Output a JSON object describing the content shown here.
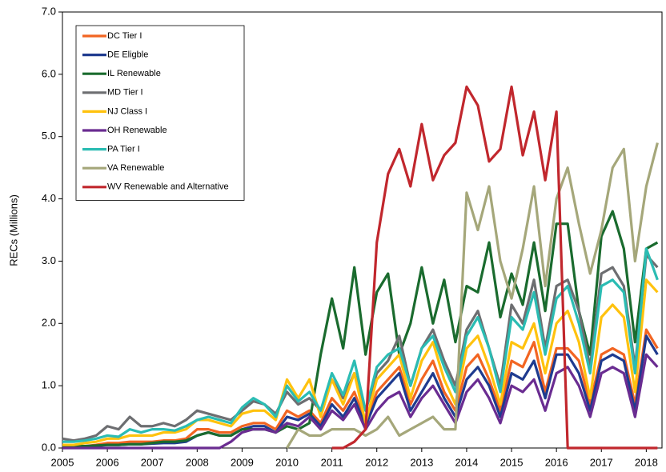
{
  "chart_data": {
    "type": "line",
    "y_label": "RECs (Millions)",
    "x": [
      2005,
      2005.25,
      2005.5,
      2005.75,
      2006,
      2006.25,
      2006.5,
      2006.75,
      2007,
      2007.25,
      2007.5,
      2007.75,
      2008,
      2008.25,
      2008.5,
      2008.75,
      2009,
      2009.25,
      2009.5,
      2009.75,
      2010,
      2010.25,
      2010.5,
      2010.75,
      2011,
      2011.25,
      2011.5,
      2011.75,
      2012,
      2012.25,
      2012.5,
      2012.75,
      2013,
      2013.25,
      2013.5,
      2013.75,
      2014,
      2014.25,
      2014.5,
      2014.75,
      2015,
      2015.25,
      2015.5,
      2015.75,
      2016,
      2016.25,
      2016.5,
      2016.75,
      2017,
      2017.25,
      2017.5,
      2017.75,
      2018,
      2018.25
    ],
    "xlim": [
      2005,
      2018.35
    ],
    "xticks": [
      2005,
      2006,
      2007,
      2008,
      2009,
      2010,
      2011,
      2012,
      2013,
      2014,
      2015,
      2016,
      2017,
      2018
    ],
    "ylim": [
      0,
      7
    ],
    "yticks": [
      {
        "value": 0,
        "label": "0.0"
      },
      {
        "value": 1,
        "label": "1.0"
      },
      {
        "value": 2,
        "label": "2.0"
      },
      {
        "value": 3,
        "label": "3.0"
      },
      {
        "value": 4,
        "label": "4.0"
      },
      {
        "value": 5,
        "label": "5.0"
      },
      {
        "value": 6,
        "label": "6.0"
      },
      {
        "value": 7,
        "label": "7.0"
      }
    ],
    "series": [
      {
        "name": "DC Tier I",
        "color": "#f26522",
        "values": [
          0.02,
          0.02,
          0.03,
          0.05,
          0.08,
          0.08,
          0.1,
          0.1,
          0.1,
          0.12,
          0.12,
          0.15,
          0.3,
          0.3,
          0.25,
          0.25,
          0.35,
          0.4,
          0.4,
          0.3,
          0.6,
          0.5,
          0.6,
          0.4,
          0.8,
          0.6,
          0.9,
          0.4,
          0.9,
          1.1,
          1.3,
          0.7,
          1.1,
          1.4,
          0.9,
          0.6,
          1.3,
          1.5,
          1.1,
          0.6,
          1.4,
          1.3,
          1.7,
          0.9,
          1.6,
          1.6,
          1.4,
          0.7,
          1.5,
          1.6,
          1.5,
          0.7,
          1.9,
          1.6
        ]
      },
      {
        "name": "DE Eligble",
        "color": "#1f3b8f",
        "values": [
          0.02,
          0.02,
          0.02,
          0.03,
          0.05,
          0.05,
          0.06,
          0.06,
          0.07,
          0.08,
          0.08,
          0.1,
          0.2,
          0.25,
          0.2,
          0.2,
          0.3,
          0.35,
          0.35,
          0.25,
          0.5,
          0.45,
          0.55,
          0.35,
          0.7,
          0.5,
          0.8,
          0.35,
          0.8,
          1.0,
          1.2,
          0.6,
          0.9,
          1.2,
          0.8,
          0.5,
          1.1,
          1.3,
          1.0,
          0.5,
          1.2,
          1.1,
          1.4,
          0.8,
          1.5,
          1.5,
          1.2,
          0.6,
          1.4,
          1.5,
          1.4,
          0.6,
          1.8,
          1.5
        ]
      },
      {
        "name": "IL Renewable",
        "color": "#1a6b2e",
        "values": [
          0.03,
          0.03,
          0.03,
          0.04,
          0.05,
          0.05,
          0.06,
          0.06,
          0.08,
          0.1,
          0.1,
          0.12,
          0.2,
          0.25,
          0.2,
          0.2,
          0.3,
          0.3,
          0.3,
          0.25,
          0.35,
          0.3,
          0.4,
          1.5,
          2.4,
          1.6,
          2.9,
          1.5,
          2.5,
          2.8,
          1.5,
          2.0,
          2.9,
          2.0,
          2.7,
          1.7,
          2.6,
          2.5,
          3.3,
          2.1,
          2.8,
          2.3,
          3.3,
          2.2,
          3.6,
          3.6,
          2.2,
          1.5,
          3.4,
          3.8,
          3.2,
          1.7,
          3.2,
          3.3
        ]
      },
      {
        "name": "MD Tier I",
        "color": "#6d6e71",
        "values": [
          0.15,
          0.12,
          0.15,
          0.2,
          0.35,
          0.3,
          0.5,
          0.35,
          0.35,
          0.4,
          0.35,
          0.45,
          0.6,
          0.55,
          0.5,
          0.45,
          0.6,
          0.75,
          0.7,
          0.55,
          0.9,
          0.7,
          0.8,
          0.6,
          1.1,
          0.8,
          1.2,
          0.6,
          1.2,
          1.4,
          1.8,
          1.0,
          1.6,
          1.9,
          1.4,
          1.0,
          1.9,
          2.2,
          1.6,
          1.0,
          2.3,
          2.0,
          2.7,
          1.6,
          2.6,
          2.7,
          2.2,
          1.3,
          2.8,
          2.9,
          2.6,
          1.3,
          3.1,
          2.9
        ]
      },
      {
        "name": "NJ Class I",
        "color": "#ffc20e",
        "values": [
          0.05,
          0.05,
          0.08,
          0.1,
          0.15,
          0.15,
          0.2,
          0.2,
          0.2,
          0.25,
          0.25,
          0.3,
          0.45,
          0.45,
          0.4,
          0.35,
          0.55,
          0.6,
          0.6,
          0.45,
          1.1,
          0.8,
          1.1,
          0.5,
          1.1,
          0.7,
          1.2,
          0.4,
          1.1,
          1.3,
          1.5,
          0.8,
          1.4,
          1.7,
          1.1,
          0.7,
          1.6,
          1.8,
          1.3,
          0.7,
          1.7,
          1.6,
          2.0,
          1.2,
          2.0,
          2.2,
          1.7,
          0.8,
          2.1,
          2.3,
          2.1,
          0.9,
          2.7,
          2.5
        ]
      },
      {
        "name": "OH Renewable",
        "color": "#6a2c91",
        "values": [
          0,
          0,
          0,
          0,
          0,
          0,
          0,
          0,
          0,
          0,
          0,
          0,
          0,
          0,
          0,
          0.1,
          0.25,
          0.3,
          0.3,
          0.25,
          0.4,
          0.35,
          0.5,
          0.3,
          0.6,
          0.45,
          0.7,
          0.3,
          0.6,
          0.8,
          0.9,
          0.5,
          0.8,
          1.0,
          0.7,
          0.4,
          0.9,
          1.1,
          0.8,
          0.4,
          1.0,
          0.9,
          1.1,
          0.6,
          1.2,
          1.3,
          1.0,
          0.5,
          1.2,
          1.3,
          1.2,
          0.5,
          1.5,
          1.3
        ]
      },
      {
        "name": "PA Tier I",
        "color": "#2bbcb3",
        "values": [
          0.1,
          0.1,
          0.12,
          0.15,
          0.2,
          0.18,
          0.3,
          0.25,
          0.3,
          0.3,
          0.28,
          0.35,
          0.45,
          0.5,
          0.45,
          0.4,
          0.65,
          0.8,
          0.7,
          0.5,
          1.0,
          0.75,
          0.9,
          0.6,
          1.2,
          0.85,
          1.4,
          0.6,
          1.3,
          1.5,
          1.6,
          1.0,
          1.6,
          1.8,
          1.3,
          0.9,
          1.8,
          2.1,
          1.6,
          0.9,
          2.1,
          1.9,
          2.5,
          1.5,
          2.4,
          2.6,
          2.0,
          1.2,
          2.6,
          2.7,
          2.5,
          1.2,
          3.2,
          2.7
        ]
      },
      {
        "name": "VA Renewable",
        "color": "#a5a77a",
        "values": [
          null,
          null,
          null,
          null,
          null,
          null,
          null,
          null,
          null,
          null,
          null,
          null,
          null,
          null,
          null,
          null,
          null,
          null,
          null,
          null,
          0,
          0.3,
          0.2,
          0.2,
          0.3,
          0.3,
          0.3,
          0.2,
          0.3,
          0.5,
          0.2,
          0.3,
          0.4,
          0.5,
          0.3,
          0.3,
          4.1,
          3.5,
          4.2,
          3.0,
          2.4,
          3.2,
          4.2,
          2.6,
          4.0,
          4.5,
          3.6,
          2.8,
          3.5,
          4.5,
          4.8,
          3.0,
          4.2,
          4.9
        ]
      },
      {
        "name": "WV Renewable and Alternative",
        "color": "#c1272d",
        "values": [
          null,
          null,
          null,
          null,
          null,
          null,
          null,
          null,
          null,
          null,
          null,
          null,
          null,
          null,
          null,
          null,
          null,
          null,
          null,
          null,
          null,
          null,
          null,
          null,
          0,
          0,
          0.1,
          0.3,
          3.3,
          4.4,
          4.8,
          4.2,
          5.2,
          4.3,
          4.7,
          4.9,
          5.8,
          5.5,
          4.6,
          4.8,
          5.8,
          4.7,
          5.4,
          4.3,
          5.4,
          0,
          0,
          0,
          0,
          0,
          0,
          0,
          0,
          0
        ]
      }
    ]
  }
}
